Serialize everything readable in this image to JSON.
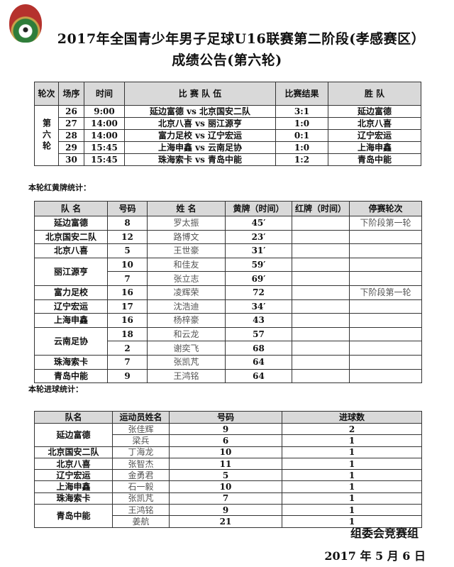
{
  "header": {
    "title_line1": "2017年全国青少年男子足球U16联赛第二阶段(孝感赛区）",
    "title_line2": "成绩公告(第六轮)"
  },
  "results": {
    "headers": [
      "轮次",
      "场序",
      "时间",
      "比 赛 队 伍",
      "比赛结果",
      "胜 队"
    ],
    "round": "第六轮",
    "rows": [
      {
        "no": "26",
        "time": "9:00",
        "match": "延边富德 vs 北京国安二队",
        "score": "3:1",
        "winner": "延边富德"
      },
      {
        "no": "27",
        "time": "14:00",
        "match": "北京八喜 vs 丽江源亨",
        "score": "1:0",
        "winner": "北京八喜"
      },
      {
        "no": "28",
        "time": "14:00",
        "match": "富力足校 vs 辽宁宏运",
        "score": "0:1",
        "winner": "辽宁宏运"
      },
      {
        "no": "29",
        "time": "15:45",
        "match": "上海申鑫 vs 云南足协",
        "score": "1:0",
        "winner": "上海申鑫"
      },
      {
        "no": "30",
        "time": "15:45",
        "match": "珠海索卡 vs 青岛中能",
        "score": "1:2",
        "winner": "青岛中能"
      }
    ]
  },
  "cards": {
    "section_title": "本轮红黄牌统计：",
    "headers": [
      "队 名",
      "号码",
      "姓 名",
      "黄牌（时间）",
      "红牌（时间）",
      "停赛轮次"
    ],
    "groups": [
      {
        "team": "延边富德",
        "players": [
          {
            "no": "8",
            "name": "罗太振",
            "yellow": "45′",
            "red": "",
            "suspension": "下阶段第一轮"
          }
        ]
      },
      {
        "team": "北京国安二队",
        "players": [
          {
            "no": "12",
            "name": "路博文",
            "yellow": "23′",
            "red": "",
            "suspension": ""
          }
        ]
      },
      {
        "team": "北京八喜",
        "players": [
          {
            "no": "5",
            "name": "王世豪",
            "yellow": "31′",
            "red": "",
            "suspension": ""
          }
        ]
      },
      {
        "team": "丽江源亨",
        "players": [
          {
            "no": "10",
            "name": "和佳友",
            "yellow": "59′",
            "red": "",
            "suspension": ""
          },
          {
            "no": "7",
            "name": "张立志",
            "yellow": "69′",
            "red": "",
            "suspension": ""
          }
        ]
      },
      {
        "team": "富力足校",
        "players": [
          {
            "no": "16",
            "name": "凌辉荣",
            "yellow": "72",
            "red": "",
            "suspension": "下阶段第一轮"
          }
        ]
      },
      {
        "team": "辽宁宏运",
        "players": [
          {
            "no": "17",
            "name": "沈浩迪",
            "yellow": "34′",
            "red": "",
            "suspension": ""
          }
        ]
      },
      {
        "team": "上海申鑫",
        "players": [
          {
            "no": "16",
            "name": "杨梓豪",
            "yellow": "43",
            "red": "",
            "suspension": ""
          }
        ]
      },
      {
        "team": "云南足协",
        "players": [
          {
            "no": "18",
            "name": "和云龙",
            "yellow": "57",
            "red": "",
            "suspension": ""
          },
          {
            "no": "2",
            "name": "谢奕飞",
            "yellow": "68",
            "red": "",
            "suspension": ""
          }
        ]
      },
      {
        "team": "珠海索卡",
        "players": [
          {
            "no": "7",
            "name": "张凯芃",
            "yellow": "64",
            "red": "",
            "suspension": ""
          }
        ]
      },
      {
        "team": "青岛中能",
        "players": [
          {
            "no": "9",
            "name": "王鸿铭",
            "yellow": "64",
            "red": "",
            "suspension": ""
          }
        ]
      }
    ]
  },
  "goals": {
    "section_title": "本轮进球统计：",
    "headers": [
      "队名",
      "运动员姓名",
      "号码",
      "进球数"
    ],
    "groups": [
      {
        "team": "延边富德",
        "players": [
          {
            "name": "张佳辉",
            "no": "9",
            "goals": "2"
          },
          {
            "name": "梁兵",
            "no": "6",
            "goals": "1"
          }
        ]
      },
      {
        "team": "北京国安二队",
        "players": [
          {
            "name": "丁海龙",
            "no": "10",
            "goals": "1"
          }
        ]
      },
      {
        "team": "北京八喜",
        "players": [
          {
            "name": "张智杰",
            "no": "11",
            "goals": "1"
          }
        ]
      },
      {
        "team": "辽宁宏运",
        "players": [
          {
            "name": "金勇君",
            "no": "5",
            "goals": "1"
          }
        ]
      },
      {
        "team": "上海申鑫",
        "players": [
          {
            "name": "石一毅",
            "no": "10",
            "goals": "1"
          }
        ]
      },
      {
        "team": "珠海索卡",
        "players": [
          {
            "name": "张凯芃",
            "no": "7",
            "goals": "1"
          }
        ]
      },
      {
        "team": "青岛中能",
        "players": [
          {
            "name": "王鸿铭",
            "no": "9",
            "goals": "1"
          },
          {
            "name": "姜航",
            "no": "21",
            "goals": "1"
          }
        ]
      }
    ]
  },
  "footer": {
    "org": "组委会竞赛组",
    "date": "2017 年 5 月 6 日"
  }
}
